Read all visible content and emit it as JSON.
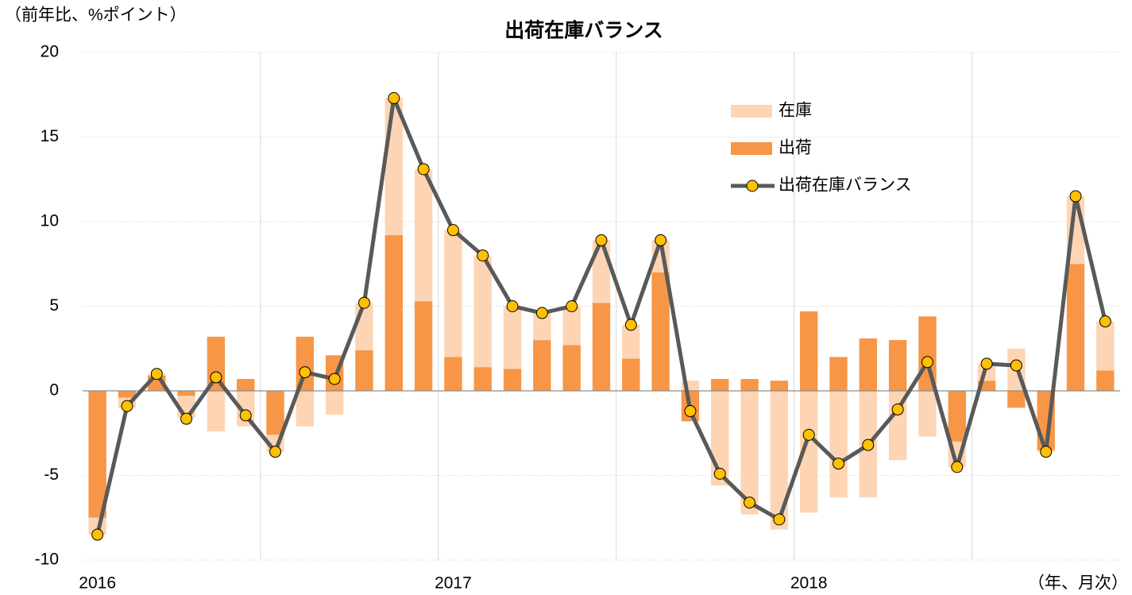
{
  "chart_data": {
    "type": "bar",
    "title": "出荷在庫バランス",
    "y_label": "（前年比、%ポイント）",
    "x_label": "（年、月次）",
    "categories": [
      "2016",
      null,
      null,
      null,
      null,
      null,
      null,
      null,
      null,
      null,
      null,
      null,
      "2017",
      null,
      null,
      null,
      null,
      null,
      null,
      null,
      null,
      null,
      null,
      null,
      "2018",
      null,
      null,
      null,
      null,
      null,
      null,
      null,
      null,
      null,
      null
    ],
    "series": [
      {
        "name": "在庫",
        "type": "bar",
        "color": "#fdd5b4",
        "values": [
          -1.0,
          -0.6,
          0.1,
          -1.3,
          -2.4,
          -2.1,
          -1.0,
          -2.1,
          -1.4,
          2.8,
          8.1,
          7.8,
          7.5,
          6.6,
          3.7,
          1.6,
          2.3,
          3.7,
          2.0,
          1.9,
          0.6,
          -5.6,
          -7.3,
          -8.2,
          -7.2,
          -6.3,
          -6.3,
          -4.1,
          -2.7,
          -1.5,
          1.0,
          2.5,
          -0.1,
          4.0,
          2.9
        ]
      },
      {
        "name": "出荷",
        "type": "bar",
        "color": "#f79646",
        "values": [
          -7.5,
          -0.4,
          0.9,
          -0.3,
          3.2,
          0.7,
          -2.6,
          3.2,
          2.1,
          2.4,
          9.2,
          5.3,
          2.0,
          1.4,
          1.3,
          3.0,
          2.7,
          5.2,
          1.9,
          7.0,
          -1.8,
          0.7,
          0.7,
          0.6,
          4.7,
          2.0,
          3.1,
          3.0,
          4.4,
          -3.0,
          0.6,
          -1.0,
          -3.5,
          7.5,
          1.2
        ]
      },
      {
        "name": "出荷在庫バランス",
        "type": "line",
        "color": "#595959",
        "marker_color": "#ffc000",
        "values": [
          -8.5,
          -0.9,
          1.0,
          -1.65,
          0.8,
          -1.45,
          -3.6,
          1.1,
          0.7,
          5.2,
          17.3,
          13.1,
          9.5,
          8.0,
          5.0,
          4.6,
          5.0,
          8.9,
          3.9,
          8.9,
          -1.2,
          -4.9,
          -6.6,
          -7.6,
          -2.6,
          -4.3,
          -3.2,
          -1.1,
          1.7,
          -4.5,
          1.6,
          1.5,
          -3.6,
          11.5,
          4.1
        ]
      }
    ],
    "ylim": [
      -10,
      20
    ],
    "yticks": [
      -10,
      -5,
      0,
      5,
      10,
      15,
      20
    ],
    "grid": true
  }
}
